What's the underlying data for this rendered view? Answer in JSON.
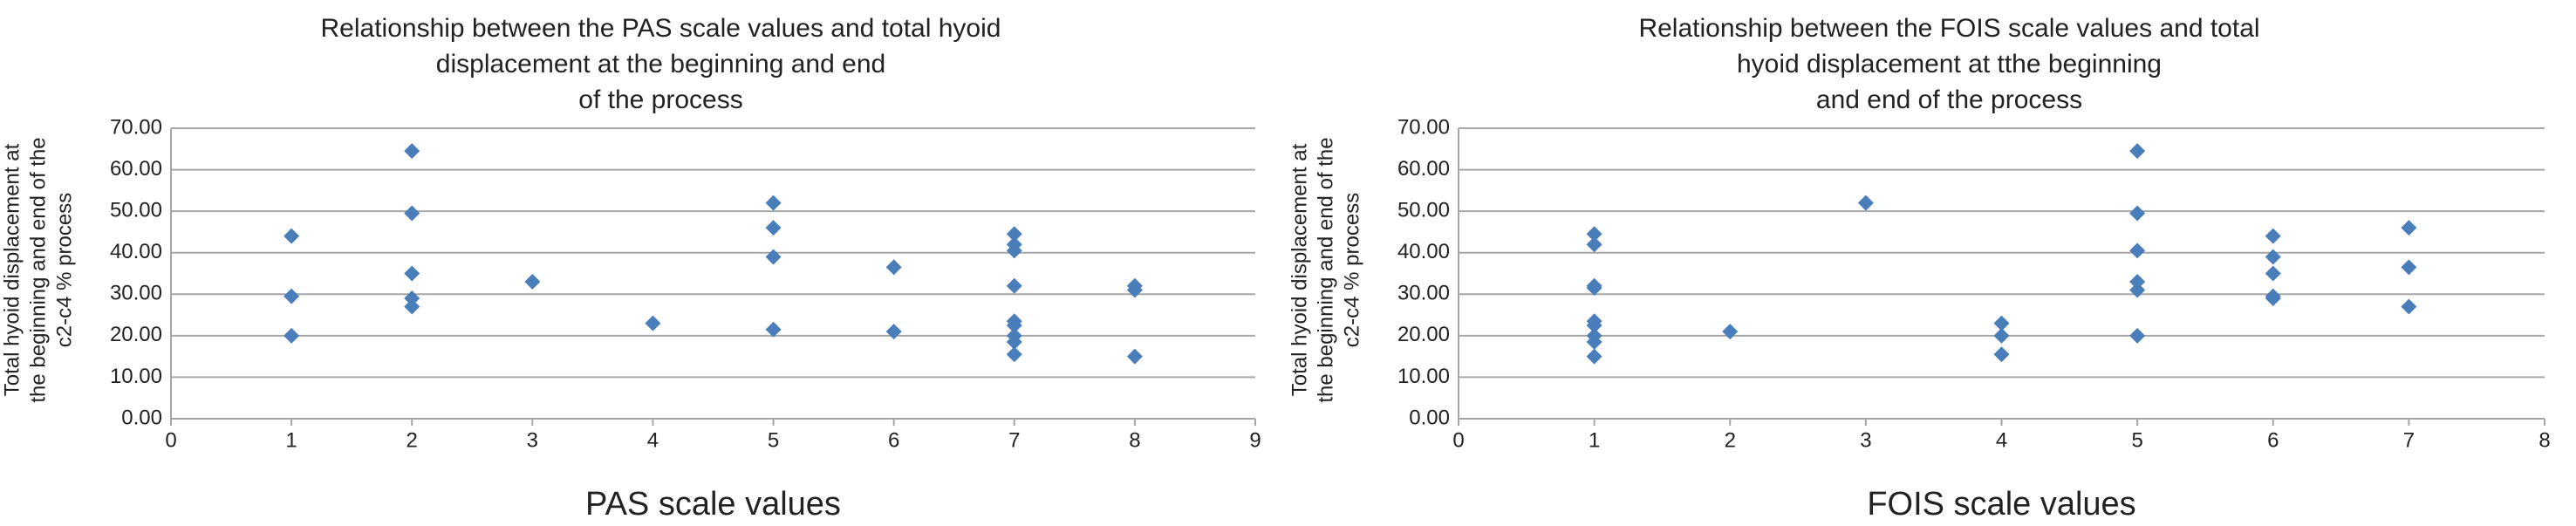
{
  "chart_data": [
    {
      "type": "scatter",
      "title": [
        "Relationship between the PAS scale values and total hyoid",
        "displacement  at the beginning and end",
        "of the process"
      ],
      "x_label": "PAS scale values",
      "y_label": [
        "Total hyoid displacement at",
        "the beginning and end of the",
        "c2-c4 % process"
      ],
      "x": [
        1,
        1,
        1,
        2,
        2,
        2,
        2,
        2,
        3,
        4,
        5,
        5,
        5,
        5,
        6,
        6,
        7,
        7,
        7,
        7,
        7,
        7,
        7,
        7,
        7,
        8,
        8,
        8
      ],
      "values": [
        44,
        29.5,
        20,
        64.5,
        49.5,
        35,
        29,
        27,
        33,
        23,
        52,
        46,
        39,
        21.5,
        36.5,
        21,
        44.5,
        42,
        40.5,
        32,
        23.5,
        22.5,
        20,
        18.5,
        15.5,
        32,
        31,
        15
      ],
      "color": "#4a7ebb",
      "xlim": [
        0,
        9
      ],
      "xticks": [
        0,
        1,
        2,
        3,
        4,
        5,
        6,
        7,
        8,
        9
      ],
      "ylim": [
        0,
        70
      ],
      "yticks": [
        {
          "value": 0,
          "label": "0.00"
        },
        {
          "value": 10,
          "label": "10.00"
        },
        {
          "value": 20,
          "label": "20.00"
        },
        {
          "value": 30,
          "label": "30.00"
        },
        {
          "value": 40,
          "label": "40.00"
        },
        {
          "value": 50,
          "label": "50.00"
        },
        {
          "value": 60,
          "label": "60.00"
        },
        {
          "value": 70,
          "label": "70.00"
        }
      ],
      "grid": true
    },
    {
      "type": "scatter",
      "title": [
        "Relationship between the FOIS scale values and total",
        "hyoid displacement at tthe beginning",
        "and end of the process"
      ],
      "x_label": "FOIS scale values",
      "y_label": [
        "Total hyoid displacement at",
        "the beginning and end of the",
        "c2-c4 % process"
      ],
      "x": [
        1,
        1,
        1,
        1,
        1,
        1,
        1,
        1,
        1,
        2,
        3,
        4,
        4,
        4,
        5,
        5,
        5,
        5,
        5,
        5,
        6,
        6,
        6,
        6,
        6,
        7,
        7,
        7
      ],
      "values": [
        44.5,
        42,
        32,
        31.5,
        23.5,
        22.5,
        20,
        18.5,
        15,
        21,
        52,
        23,
        20,
        15.5,
        64.5,
        49.5,
        40.5,
        33,
        31,
        20,
        44,
        39,
        35,
        29.5,
        29,
        46,
        36.5,
        27
      ],
      "color": "#4a7ebb",
      "xlim": [
        0,
        8
      ],
      "xticks": [
        0,
        1,
        2,
        3,
        4,
        5,
        6,
        7,
        8
      ],
      "ylim": [
        0,
        70
      ],
      "yticks": [
        {
          "value": 0,
          "label": "0.00"
        },
        {
          "value": 10,
          "label": "10.00"
        },
        {
          "value": 20,
          "label": "20.00"
        },
        {
          "value": 30,
          "label": "30.00"
        },
        {
          "value": 40,
          "label": "40.00"
        },
        {
          "value": 50,
          "label": "50.00"
        },
        {
          "value": 60,
          "label": "60.00"
        },
        {
          "value": 70,
          "label": "70.00"
        }
      ],
      "grid": true
    }
  ]
}
